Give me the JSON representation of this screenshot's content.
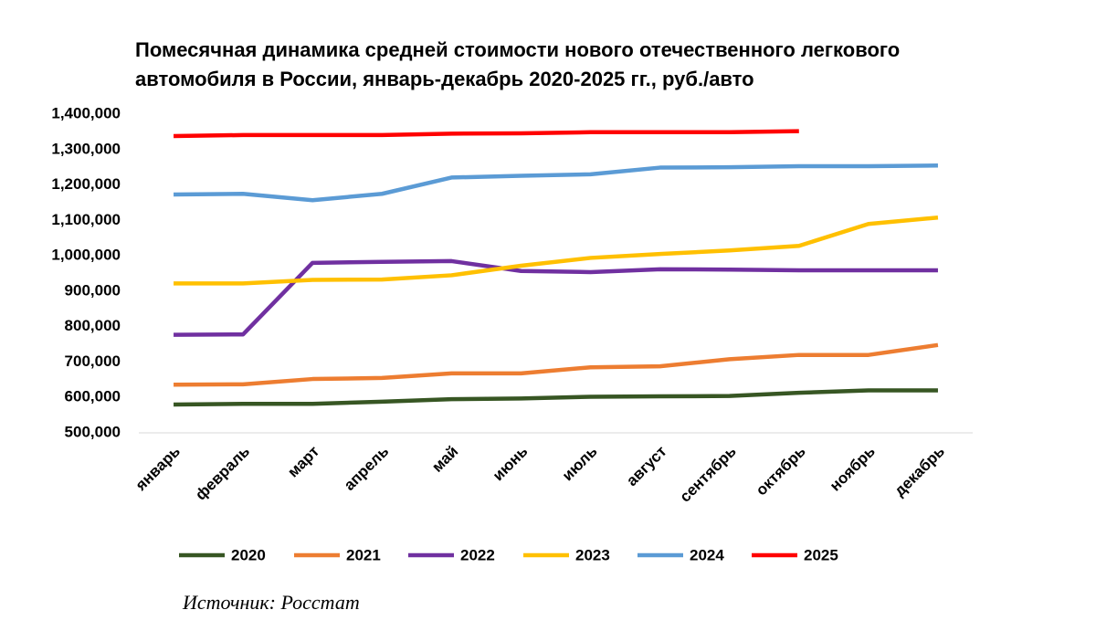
{
  "chart_data": {
    "type": "line",
    "title": "Помесячная динамика средней стоимости нового отечественного легкового",
    "title_line2": "автомобиля в России, январь-декабрь 2020-2025 гг., руб./авто",
    "source": "Источник: Росстат",
    "categories": [
      "январь",
      "февраль",
      "март",
      "апрель",
      "май",
      "июнь",
      "июль",
      "август",
      "сентябрь",
      "октябрь",
      "ноябрь",
      "декабрь"
    ],
    "series": [
      {
        "name": "2020",
        "color": "#375623",
        "values": [
          580000,
          582000,
          582000,
          588000,
          595000,
          597000,
          602000,
          603000,
          604000,
          613000,
          620000,
          620000
        ]
      },
      {
        "name": "2021",
        "color": "#ed7d31",
        "values": [
          636000,
          637000,
          652000,
          655000,
          668000,
          668000,
          685000,
          688000,
          708000,
          720000,
          720000,
          748000
        ]
      },
      {
        "name": "2022",
        "color": "#7030a0",
        "values": [
          777000,
          778000,
          980000,
          983000,
          985000,
          957000,
          954000,
          962000,
          961000,
          959000,
          959000,
          959000
        ]
      },
      {
        "name": "2023",
        "color": "#ffc000",
        "values": [
          922000,
          922000,
          932000,
          933000,
          945000,
          972000,
          994000,
          1005000,
          1015000,
          1028000,
          1090000,
          1108000
        ]
      },
      {
        "name": "2024",
        "color": "#5b9bd5",
        "values": [
          1173000,
          1175000,
          1157000,
          1175000,
          1221000,
          1226000,
          1230000,
          1249000,
          1250000,
          1253000,
          1253000,
          1255000
        ]
      },
      {
        "name": "2025",
        "color": "#ff0000",
        "values": [
          1338000,
          1341000,
          1341000,
          1341000,
          1345000,
          1346000,
          1349000,
          1349000,
          1349000,
          1352000,
          null,
          null
        ]
      }
    ],
    "ylim": [
      500000,
      1400000
    ],
    "yticks": [
      {
        "value": 500000,
        "label": "500,000"
      },
      {
        "value": 600000,
        "label": "600,000"
      },
      {
        "value": 700000,
        "label": "700,000"
      },
      {
        "value": 800000,
        "label": "800,000"
      },
      {
        "value": 900000,
        "label": "900,000"
      },
      {
        "value": 1000000,
        "label": "1,000,000"
      },
      {
        "value": 1100000,
        "label": "1,100,000"
      },
      {
        "value": 1200000,
        "label": "1,200,000"
      },
      {
        "value": 1300000,
        "label": "1,300,000"
      },
      {
        "value": 1400000,
        "label": "1,400,000"
      }
    ],
    "grid": false,
    "legend": "bottom"
  }
}
